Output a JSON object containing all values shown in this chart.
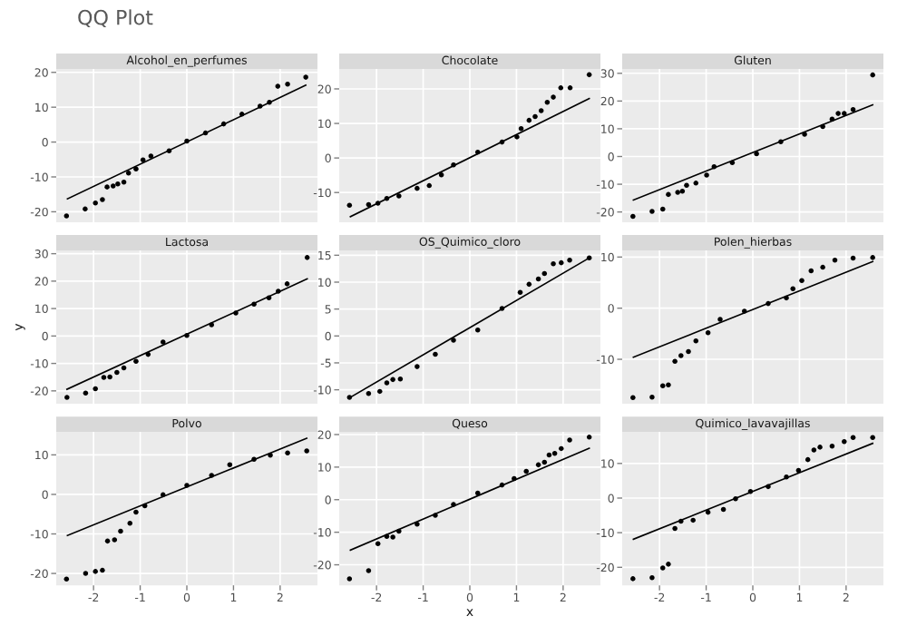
{
  "chart_data": [
    {
      "type": "scatter",
      "title": "Alcohol_en_perfumes",
      "annotations": [
        "QQ Plot"
      ],
      "xlim": [
        -2.8,
        2.8
      ],
      "xticks": [
        -2,
        -1,
        0,
        1,
        2
      ],
      "ylim": [
        -23,
        21
      ],
      "yticks": [
        -20,
        -10,
        0,
        10,
        20
      ],
      "tick_labels": "y",
      "grid": true,
      "series": [
        {
          "color": "#000000",
          "x": [
            -2.58,
            -2.18,
            -1.96,
            -1.81,
            -1.71,
            -1.58,
            -1.48,
            -1.35,
            -1.25,
            -1.09,
            -0.94,
            -0.77,
            -0.38,
            0,
            0.4,
            0.79,
            1.18,
            1.57,
            1.77,
            1.95,
            2.16,
            2.55
          ],
          "values": [
            -21.2,
            -19.2,
            -17.5,
            -16.5,
            -12.9,
            -12.6,
            -12,
            -11.5,
            -8.9,
            -7.7,
            -5.1,
            -4,
            -2.5,
            0.3,
            2.6,
            5.2,
            8,
            10.3,
            11.4,
            16,
            16.6,
            18.6
          ]
        },
        {
          "type": "line",
          "color": "#000000",
          "x": [
            -2.56,
            2.55
          ],
          "values": [
            -16.3,
            16.3
          ]
        }
      ]
    },
    {
      "type": "scatter",
      "title": "Chocolate",
      "xlim": [
        -2.8,
        2.8
      ],
      "xticks": [
        -2,
        -1,
        0,
        1,
        2
      ],
      "ylim": [
        -18.6,
        25.8
      ],
      "yticks": [
        -10,
        0,
        10,
        20
      ],
      "tick_labels": "y",
      "grid": true,
      "series": [
        {
          "color": "#000000",
          "x": [
            -2.58,
            -2.17,
            -1.97,
            -1.78,
            -1.52,
            -1.13,
            -0.87,
            -0.61,
            -0.35,
            0.17,
            0.69,
            1.01,
            1.1,
            1.27,
            1.4,
            1.53,
            1.66,
            1.79,
            1.95,
            2.15,
            2.56
          ],
          "values": [
            -13.7,
            -13.5,
            -13.1,
            -11.7,
            -11,
            -8.8,
            -8,
            -4.9,
            -2,
            1.7,
            4.6,
            6.1,
            8.5,
            10.9,
            12,
            13.7,
            16.1,
            17.6,
            20.3,
            20.3,
            24.1
          ]
        },
        {
          "type": "line",
          "color": "#000000",
          "x": [
            -2.56,
            2.56
          ],
          "values": [
            -17,
            17.2
          ]
        }
      ]
    },
    {
      "type": "scatter",
      "title": "Gluten",
      "xlim": [
        -2.8,
        2.8
      ],
      "xticks": [
        -2,
        -1,
        0,
        1,
        2
      ],
      "ylim": [
        -23.7,
        31.6
      ],
      "yticks": [
        -20,
        -10,
        0,
        10,
        20,
        30
      ],
      "tick_labels": "y",
      "grid": true,
      "series": [
        {
          "color": "#000000",
          "x": [
            -2.57,
            -2.16,
            -1.93,
            -1.81,
            -1.61,
            -1.51,
            -1.42,
            -1.22,
            -0.99,
            -0.83,
            -0.44,
            0.08,
            0.6,
            1.11,
            1.5,
            1.7,
            1.83,
            1.96,
            2.15,
            2.57
          ],
          "values": [
            -21.6,
            -19.8,
            -19,
            -13.7,
            -12.9,
            -12.5,
            -10.4,
            -9.6,
            -6.7,
            -3.7,
            -2.2,
            1,
            5.3,
            8,
            10.8,
            13.5,
            15.5,
            15.5,
            16.9,
            29.4
          ]
        },
        {
          "type": "line",
          "color": "#000000",
          "x": [
            -2.56,
            2.57
          ],
          "values": [
            -15.7,
            18.6
          ]
        }
      ]
    },
    {
      "type": "scatter",
      "title": "Lactosa",
      "ylabel": "y",
      "xlim": [
        -2.8,
        2.8
      ],
      "xticks": [
        -2,
        -1,
        0,
        1,
        2
      ],
      "ylim": [
        -24.7,
        31.2
      ],
      "yticks": [
        -20,
        -10,
        0,
        10,
        20,
        30
      ],
      "tick_labels": "y",
      "grid": true,
      "series": [
        {
          "color": "#000000",
          "x": [
            -2.57,
            -2.17,
            -1.96,
            -1.78,
            -1.65,
            -1.5,
            -1.35,
            -1.09,
            -0.83,
            -0.51,
            0,
            0.53,
            1.05,
            1.44,
            1.76,
            1.96,
            2.15,
            2.58
          ],
          "values": [
            -22.4,
            -20.8,
            -19.2,
            -15.1,
            -14.9,
            -13.3,
            -11.6,
            -9.2,
            -6.7,
            -2.2,
            0.2,
            4.1,
            8.4,
            11.6,
            13.9,
            16.3,
            19,
            28.6
          ]
        },
        {
          "type": "line",
          "color": "#000000",
          "x": [
            -2.57,
            2.58
          ],
          "values": [
            -19.4,
            20.8
          ]
        }
      ]
    },
    {
      "type": "scatter",
      "title": "OS_Quimico_cloro",
      "xlim": [
        -2.8,
        2.8
      ],
      "xticks": [
        -2,
        -1,
        0,
        1,
        2
      ],
      "ylim": [
        -12.6,
        15.9
      ],
      "yticks": [
        -10,
        -5,
        0,
        5,
        10,
        15
      ],
      "tick_labels": "y",
      "grid": true,
      "series": [
        {
          "color": "#000000",
          "x": [
            -2.58,
            -2.17,
            -1.93,
            -1.78,
            -1.65,
            -1.49,
            -1.13,
            -0.74,
            -0.35,
            0.17,
            0.69,
            1.08,
            1.27,
            1.47,
            1.6,
            1.79,
            1.96,
            2.14,
            2.56
          ],
          "values": [
            -11.4,
            -10.7,
            -10.3,
            -8.7,
            -8.1,
            -8,
            -5.7,
            -3.4,
            -0.8,
            1.1,
            5.1,
            8.1,
            9.6,
            10.6,
            11.6,
            13.4,
            13.6,
            14.1,
            14.5
          ]
        },
        {
          "type": "line",
          "color": "#000000",
          "x": [
            -2.56,
            2.56
          ],
          "values": [
            -11.4,
            14.5
          ]
        }
      ]
    },
    {
      "type": "scatter",
      "title": "Polen_hierbas",
      "xlim": [
        -2.8,
        2.8
      ],
      "xticks": [
        -2,
        -1,
        0,
        1,
        2
      ],
      "ylim": [
        -18.7,
        11.3
      ],
      "yticks": [
        -10,
        0,
        10
      ],
      "tick_labels": "y",
      "grid": true,
      "series": [
        {
          "color": "#000000",
          "x": [
            -2.57,
            -2.16,
            -1.93,
            -1.81,
            -1.67,
            -1.54,
            -1.38,
            -1.22,
            -0.96,
            -0.7,
            -0.18,
            0.33,
            0.72,
            0.86,
            1.05,
            1.25,
            1.5,
            1.76,
            2.15,
            2.57
          ],
          "values": [
            -17.5,
            -17.4,
            -15.2,
            -15,
            -10.4,
            -9.3,
            -8.5,
            -6.4,
            -4.8,
            -2.2,
            -0.6,
            0.9,
            2,
            3.8,
            5.4,
            7.3,
            8,
            9.4,
            9.8,
            9.9
          ]
        },
        {
          "type": "line",
          "color": "#000000",
          "x": [
            -2.56,
            2.57
          ],
          "values": [
            -9.6,
            9.1
          ]
        }
      ]
    },
    {
      "type": "scatter",
      "title": "Polvo",
      "xlim": [
        -2.8,
        2.8
      ],
      "xticks": [
        -2,
        -1,
        0,
        1,
        2
      ],
      "ylim": [
        -23,
        15.8
      ],
      "yticks": [
        -20,
        -10,
        0,
        10
      ],
      "grid": true,
      "series": [
        {
          "color": "#000000",
          "x": [
            -2.58,
            -2.17,
            -1.96,
            -1.81,
            -1.7,
            -1.55,
            -1.42,
            -1.22,
            -1.09,
            -0.9,
            -0.51,
            0,
            0.53,
            0.92,
            1.44,
            1.79,
            2.16,
            2.57
          ],
          "values": [
            -21.4,
            -20,
            -19.5,
            -19.2,
            -11.8,
            -11.5,
            -9.3,
            -7.3,
            -4.5,
            -2.9,
            -0.1,
            2.3,
            4.8,
            7.5,
            8.9,
            9.9,
            10.5,
            11
          ]
        },
        {
          "type": "line",
          "color": "#000000",
          "x": [
            -2.56,
            2.57
          ],
          "values": [
            -10.4,
            14.2
          ]
        }
      ]
    },
    {
      "type": "scatter",
      "title": "Queso",
      "xlabel": "x",
      "xlim": [
        -2.8,
        2.8
      ],
      "xticks": [
        -2,
        -1,
        0,
        1,
        2
      ],
      "ylim": [
        -26.3,
        20.8
      ],
      "yticks": [
        -20,
        -10,
        0,
        10,
        20
      ],
      "grid": true,
      "series": [
        {
          "color": "#000000",
          "x": [
            -2.58,
            -2.17,
            -1.97,
            -1.78,
            -1.65,
            -1.52,
            -1.13,
            -0.74,
            -0.35,
            0.17,
            0.69,
            0.95,
            1.21,
            1.47,
            1.6,
            1.7,
            1.82,
            1.96,
            2.14,
            2.56
          ],
          "values": [
            -24.3,
            -21.8,
            -13.5,
            -11.3,
            -11.5,
            -9.7,
            -7.5,
            -4.8,
            -1.5,
            2,
            4.5,
            6.5,
            8.7,
            10.7,
            11.5,
            13.7,
            14.2,
            15.7,
            18.3,
            19.2
          ]
        },
        {
          "type": "line",
          "color": "#000000",
          "x": [
            -2.56,
            2.56
          ],
          "values": [
            -15.5,
            15.8
          ]
        }
      ]
    },
    {
      "type": "scatter",
      "title": "Quimico_lavavajillas",
      "xlim": [
        -2.8,
        2.8
      ],
      "xticks": [
        -2,
        -1,
        0,
        1,
        2
      ],
      "ylim": [
        -25.2,
        19.1
      ],
      "yticks": [
        -20,
        -10,
        0,
        10
      ],
      "grid": true,
      "series": [
        {
          "color": "#000000",
          "x": [
            -2.57,
            -2.16,
            -1.93,
            -1.81,
            -1.67,
            -1.54,
            -1.28,
            -0.96,
            -0.63,
            -0.37,
            -0.05,
            0.33,
            0.72,
            0.98,
            1.18,
            1.31,
            1.44,
            1.7,
            1.96,
            2.15,
            2.57
          ],
          "values": [
            -23.3,
            -23,
            -20.2,
            -19.1,
            -8.8,
            -6.7,
            -6.4,
            -4.1,
            -3.3,
            -0.2,
            1.9,
            3.3,
            6.1,
            8,
            11.1,
            13.9,
            14.7,
            15,
            16.3,
            17.5,
            17.5
          ]
        },
        {
          "type": "line",
          "color": "#000000",
          "x": [
            -2.56,
            2.57
          ],
          "values": [
            -11.9,
            15.8
          ]
        }
      ]
    }
  ]
}
